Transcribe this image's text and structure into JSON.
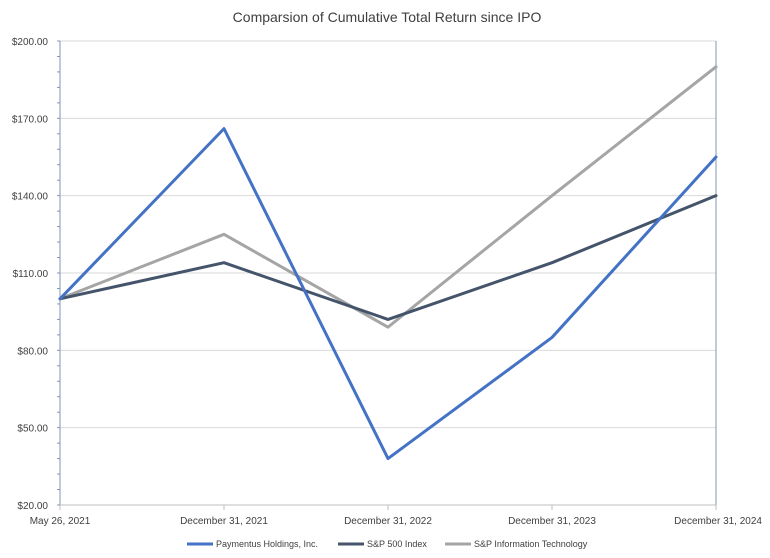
{
  "chart_data": {
    "type": "line",
    "title": "Comparsion of Cumulative Total Return since IPO",
    "categories": [
      "May 26, 2021",
      "December 31, 2021",
      "December 31, 2022",
      "December 31, 2023",
      "December 31, 2024"
    ],
    "y_tick_labels": [
      "$20.00",
      "$50.00",
      "$80.00",
      "$110.00",
      "$140.00",
      "$170.00",
      "$200.00"
    ],
    "ylim": [
      20,
      200
    ],
    "y_ticks": [
      20,
      50,
      80,
      110,
      140,
      170,
      200
    ],
    "xlabel": "",
    "ylabel": "",
    "grid": true,
    "legend_position": "bottom",
    "series": [
      {
        "name": "Paymentus Holdings, Inc.",
        "color": "#4472c4",
        "values": [
          100,
          166,
          38,
          85,
          155
        ]
      },
      {
        "name": "S&P 500 Index",
        "color": "#44546a",
        "values": [
          100,
          114,
          92,
          114,
          140
        ]
      },
      {
        "name": "S&P Information Technology",
        "color": "#a5a5a5",
        "values": [
          100,
          125,
          89,
          140,
          190
        ]
      }
    ]
  }
}
